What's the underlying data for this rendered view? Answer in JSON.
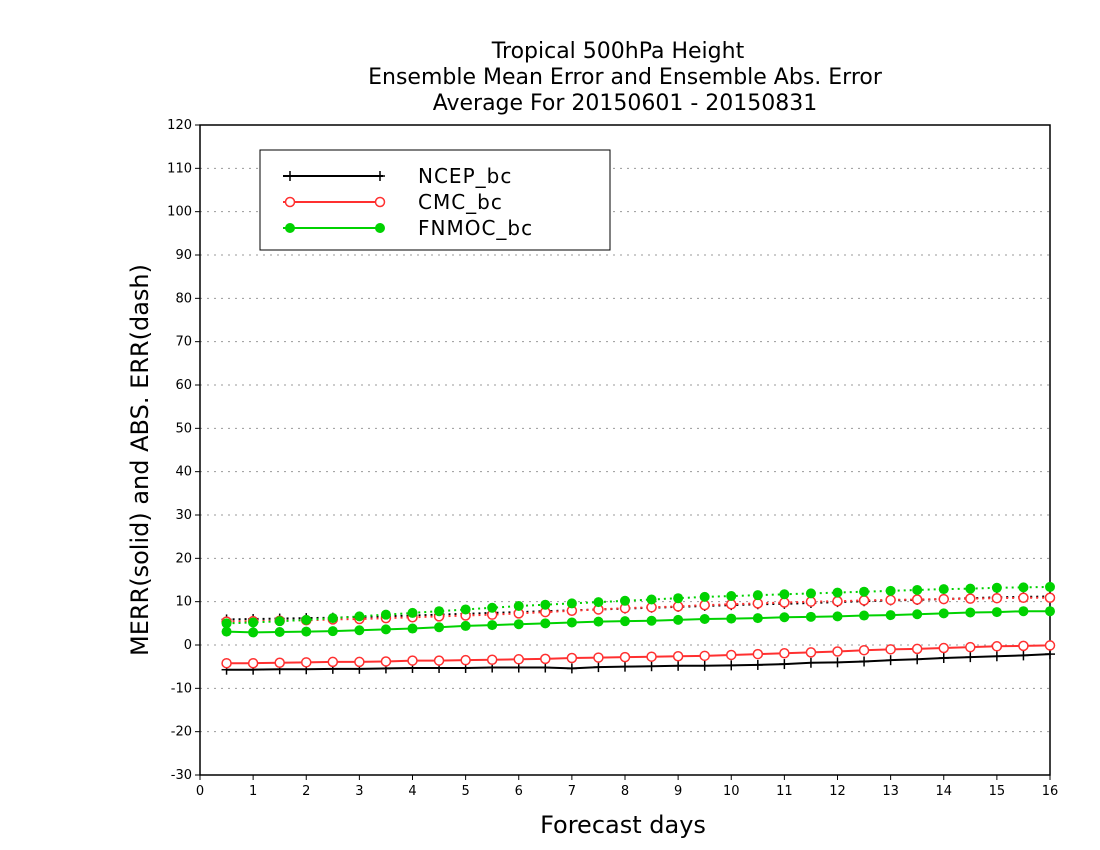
{
  "chart_data": {
    "type": "line",
    "title": [
      "Tropical 500hPa Height",
      "Ensemble Mean Error and Ensemble Abs. Error",
      "Average For 20150601 - 20150831"
    ],
    "xlabel": "Forecast days",
    "ylabel": "MERR(solid) and ABS. ERR(dash)",
    "xlim": [
      0,
      16
    ],
    "ylim": [
      -30,
      120
    ],
    "xticks": [
      0,
      1,
      2,
      3,
      4,
      5,
      6,
      7,
      8,
      9,
      10,
      11,
      12,
      13,
      14,
      15,
      16
    ],
    "yticks": [
      -30,
      -20,
      -10,
      0,
      10,
      20,
      30,
      40,
      50,
      60,
      70,
      80,
      90,
      100,
      110,
      120
    ],
    "grid": "horizontal dotted",
    "legend_position": "top-left",
    "x": [
      0.5,
      1,
      1.5,
      2,
      2.5,
      3,
      3.5,
      4,
      4.5,
      5,
      5.5,
      6,
      6.5,
      7,
      7.5,
      8,
      8.5,
      9,
      9.5,
      10,
      10.5,
      11,
      11.5,
      12,
      12.5,
      13,
      13.5,
      14,
      14.5,
      15,
      15.5,
      16
    ],
    "series": [
      {
        "name": "NCEP_bc",
        "color": "#000000",
        "marker": "plus",
        "merr": [
          -5.7,
          -5.7,
          -5.6,
          -5.6,
          -5.5,
          -5.5,
          -5.4,
          -5.3,
          -5.3,
          -5.3,
          -5.2,
          -5.2,
          -5.2,
          -5.4,
          -5.1,
          -5.0,
          -4.9,
          -4.8,
          -4.8,
          -4.7,
          -4.6,
          -4.4,
          -4.1,
          -4.0,
          -3.8,
          -3.5,
          -3.3,
          -3.0,
          -2.8,
          -2.6,
          -2.4,
          -2.1
        ],
        "abs_err": [
          5.9,
          6.0,
          6.1,
          6.2,
          6.3,
          6.5,
          6.6,
          6.8,
          7.0,
          7.2,
          7.4,
          7.6,
          7.8,
          8.0,
          8.2,
          8.4,
          8.6,
          8.8,
          9.0,
          9.2,
          9.4,
          9.5,
          9.7,
          9.9,
          10.1,
          10.3,
          10.4,
          10.6,
          10.8,
          11.0,
          11.1,
          11.2
        ]
      },
      {
        "name": "CMC_bc",
        "color": "#ff3030",
        "marker": "open-circle",
        "merr": [
          -4.2,
          -4.2,
          -4.1,
          -4.0,
          -3.9,
          -3.9,
          -3.8,
          -3.6,
          -3.6,
          -3.5,
          -3.4,
          -3.3,
          -3.2,
          -3.0,
          -2.9,
          -2.8,
          -2.7,
          -2.6,
          -2.5,
          -2.3,
          -2.1,
          -1.9,
          -1.7,
          -1.5,
          -1.2,
          -1.0,
          -0.9,
          -0.7,
          -0.5,
          -0.3,
          -0.2,
          -0.1
        ],
        "abs_err": [
          5.4,
          5.5,
          5.6,
          5.7,
          5.9,
          6.0,
          6.2,
          6.4,
          6.6,
          6.8,
          7.0,
          7.3,
          7.6,
          7.9,
          8.2,
          8.5,
          8.7,
          8.9,
          9.2,
          9.4,
          9.6,
          9.8,
          10.0,
          10.1,
          10.3,
          10.4,
          10.5,
          10.6,
          10.7,
          10.8,
          10.9,
          10.9
        ]
      },
      {
        "name": "FNMOC_bc",
        "color": "#00d200",
        "marker": "filled-circle",
        "merr": [
          3.1,
          2.9,
          3.0,
          3.1,
          3.2,
          3.4,
          3.6,
          3.8,
          4.1,
          4.4,
          4.6,
          4.8,
          5.0,
          5.2,
          5.4,
          5.5,
          5.6,
          5.8,
          6.0,
          6.1,
          6.2,
          6.4,
          6.5,
          6.6,
          6.8,
          6.9,
          7.1,
          7.3,
          7.5,
          7.6,
          7.8,
          7.8
        ],
        "abs_err": [
          5.0,
          5.2,
          5.5,
          5.8,
          6.2,
          6.6,
          7.0,
          7.4,
          7.8,
          8.2,
          8.6,
          9.0,
          9.3,
          9.6,
          9.9,
          10.2,
          10.5,
          10.8,
          11.1,
          11.3,
          11.5,
          11.7,
          11.9,
          12.1,
          12.3,
          12.5,
          12.7,
          12.9,
          13.0,
          13.2,
          13.3,
          13.4
        ]
      }
    ]
  }
}
